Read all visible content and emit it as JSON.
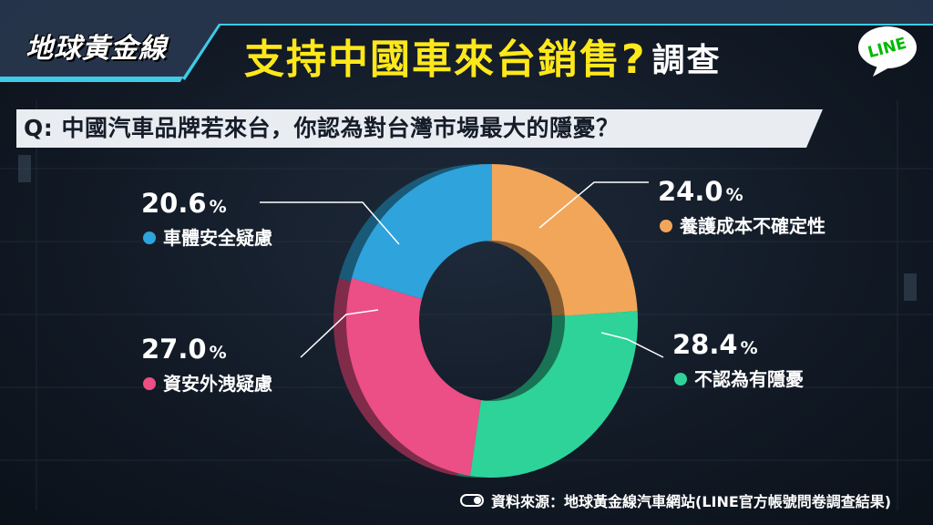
{
  "header": {
    "brand": "地球黃金線",
    "title_main": "支持中國車來台銷售?",
    "title_suffix": "調查",
    "line_logo": "LINE"
  },
  "question": "Q: 中國汽車品牌若來台，你認為對台灣市場最大的隱憂？",
  "chart_data": {
    "type": "pie",
    "donut": true,
    "categories": [
      "養護成本不確定性",
      "不認為有隱憂",
      "資安外洩疑慮",
      "車體安全疑慮"
    ],
    "values": [
      24.0,
      28.4,
      27.0,
      20.6
    ],
    "value_labels": [
      "24.0",
      "28.4",
      "27.0",
      "20.6"
    ],
    "unit": "%",
    "colors": [
      "#f2a65a",
      "#2ed39a",
      "#eb4f86",
      "#2ea3dc"
    ],
    "start_angle_deg": 0,
    "direction": "clockwise"
  },
  "source": {
    "icon": "toggle-icon",
    "text": "資料來源：地球黃金線汽車網站(LINE官方帳號問卷調查結果)"
  }
}
